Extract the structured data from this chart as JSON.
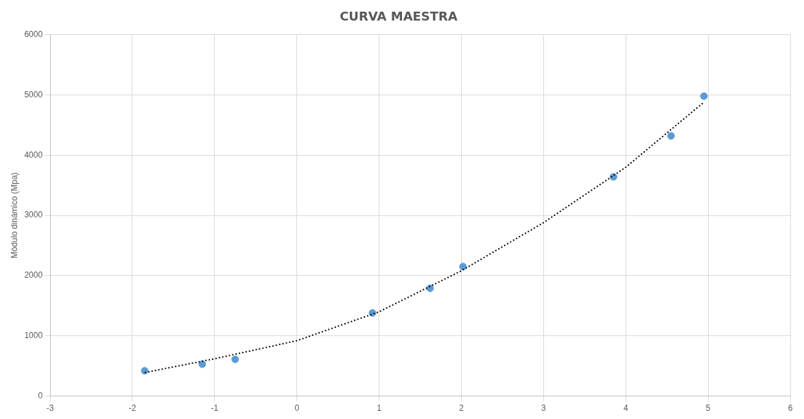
{
  "chart_data": {
    "type": "scatter",
    "title": "CURVA MAESTRA",
    "ylabel": "Módulo dinámico (Mpa)",
    "xlim": [
      -3,
      6
    ],
    "xticks": [
      -3,
      -2,
      -1,
      0,
      1,
      2,
      3,
      4,
      5,
      6
    ],
    "ylim": [
      0,
      6000
    ],
    "yticks": [
      0,
      1000,
      2000,
      3000,
      4000,
      5000,
      6000
    ],
    "grid": true,
    "legend": false,
    "series": [
      {
        "type": "scatter",
        "color": "#5b9bd5",
        "marker": "circle",
        "x": [
          -1.85,
          -1.15,
          -0.75,
          0.92,
          1.62,
          2.02,
          3.85,
          4.55,
          4.95
        ],
        "values": [
          420,
          530,
          610,
          1380,
          1790,
          2150,
          3640,
          4320,
          4980
        ]
      },
      {
        "type": "line",
        "color": "#000000",
        "marker": "none",
        "line_style": "dotted",
        "x": [
          -1.85,
          -1,
          0,
          1,
          2,
          3,
          4,
          4.95
        ],
        "values": [
          390,
          620,
          920,
          1400,
          2080,
          2880,
          3800,
          4880
        ]
      }
    ]
  }
}
